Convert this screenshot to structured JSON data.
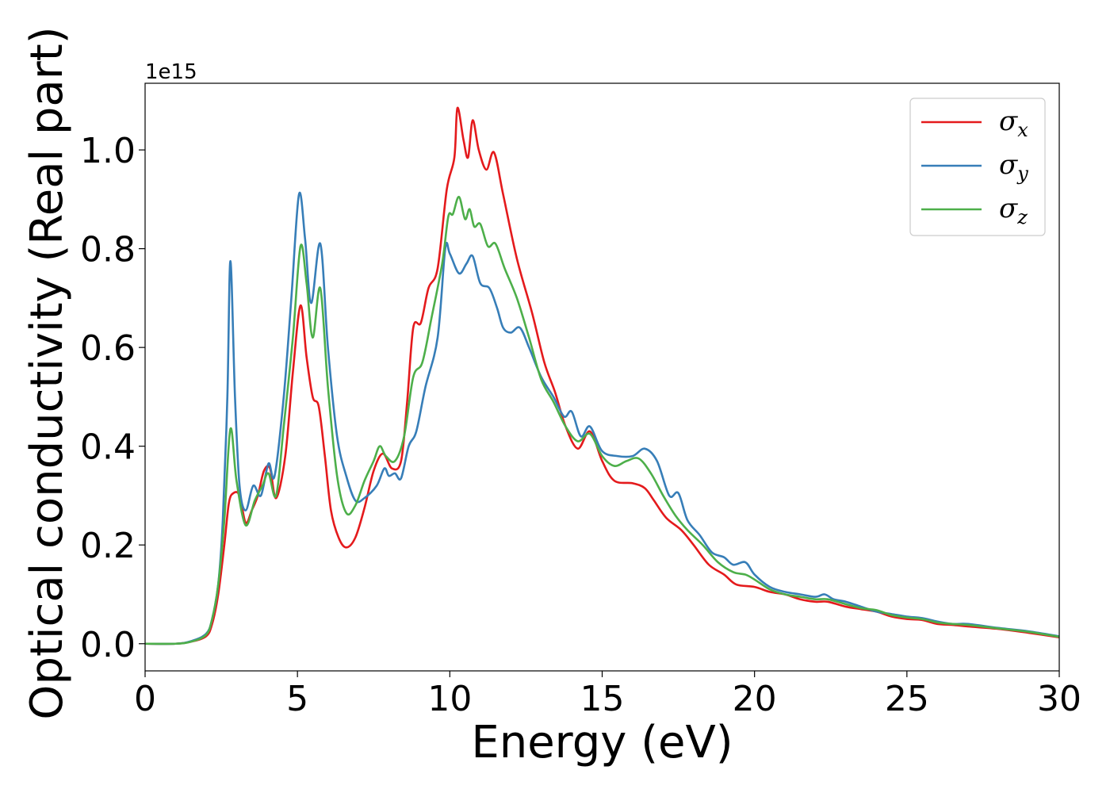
{
  "chart_data": {
    "type": "line",
    "title": "",
    "xlabel": "Energy (eV)",
    "ylabel": "Optical conductivity (Real part)",
    "y_offset_label": "1e15",
    "xlim": [
      0,
      30
    ],
    "ylim": [
      -0.055,
      1.135
    ],
    "x_ticks": [
      0,
      5,
      10,
      15,
      20,
      25,
      30
    ],
    "x_tick_labels": [
      "0",
      "5",
      "10",
      "15",
      "20",
      "25",
      "30"
    ],
    "y_ticks": [
      0.0,
      0.2,
      0.4,
      0.6,
      0.8,
      1.0
    ],
    "y_tick_labels": [
      "0.0",
      "0.2",
      "0.4",
      "0.6",
      "0.8",
      "1.0"
    ],
    "grid": false,
    "legend_position": "top-right",
    "series": [
      {
        "name": "σx",
        "symbol": "σ",
        "subscript": "x",
        "color": "#e41a1c",
        "points": [
          [
            0,
            0
          ],
          [
            1,
            0
          ],
          [
            1.5,
            0.004
          ],
          [
            2,
            0.015
          ],
          [
            2.2,
            0.04
          ],
          [
            2.4,
            0.1
          ],
          [
            2.6,
            0.2
          ],
          [
            2.75,
            0.285
          ],
          [
            2.9,
            0.305
          ],
          [
            3.1,
            0.3
          ],
          [
            3.3,
            0.245
          ],
          [
            3.5,
            0.27
          ],
          [
            3.7,
            0.3
          ],
          [
            3.9,
            0.35
          ],
          [
            4.1,
            0.355
          ],
          [
            4.3,
            0.295
          ],
          [
            4.6,
            0.38
          ],
          [
            4.85,
            0.55
          ],
          [
            5.1,
            0.685
          ],
          [
            5.3,
            0.58
          ],
          [
            5.5,
            0.5
          ],
          [
            5.7,
            0.48
          ],
          [
            5.9,
            0.38
          ],
          [
            6.1,
            0.27
          ],
          [
            6.35,
            0.215
          ],
          [
            6.6,
            0.195
          ],
          [
            6.9,
            0.215
          ],
          [
            7.2,
            0.275
          ],
          [
            7.5,
            0.35
          ],
          [
            7.8,
            0.385
          ],
          [
            8.1,
            0.355
          ],
          [
            8.4,
            0.37
          ],
          [
            8.6,
            0.49
          ],
          [
            8.8,
            0.64
          ],
          [
            9.05,
            0.65
          ],
          [
            9.3,
            0.72
          ],
          [
            9.6,
            0.76
          ],
          [
            9.9,
            0.92
          ],
          [
            10.15,
            0.985
          ],
          [
            10.25,
            1.085
          ],
          [
            10.45,
            1.02
          ],
          [
            10.6,
            0.985
          ],
          [
            10.75,
            1.06
          ],
          [
            10.95,
            1.0
          ],
          [
            11.2,
            0.96
          ],
          [
            11.45,
            0.995
          ],
          [
            11.75,
            0.91
          ],
          [
            12.2,
            0.78
          ],
          [
            12.7,
            0.67
          ],
          [
            13.1,
            0.57
          ],
          [
            13.45,
            0.51
          ],
          [
            13.8,
            0.44
          ],
          [
            14.2,
            0.395
          ],
          [
            14.6,
            0.43
          ],
          [
            15.0,
            0.37
          ],
          [
            15.4,
            0.33
          ],
          [
            16.0,
            0.325
          ],
          [
            16.4,
            0.315
          ],
          [
            16.7,
            0.29
          ],
          [
            17.1,
            0.255
          ],
          [
            17.6,
            0.23
          ],
          [
            18.0,
            0.2
          ],
          [
            18.5,
            0.16
          ],
          [
            19.0,
            0.14
          ],
          [
            19.4,
            0.12
          ],
          [
            20.0,
            0.115
          ],
          [
            20.5,
            0.105
          ],
          [
            21.0,
            0.1
          ],
          [
            21.5,
            0.09
          ],
          [
            22.0,
            0.085
          ],
          [
            22.4,
            0.085
          ],
          [
            23.0,
            0.075
          ],
          [
            23.5,
            0.07
          ],
          [
            24.0,
            0.065
          ],
          [
            24.5,
            0.055
          ],
          [
            25.0,
            0.05
          ],
          [
            25.5,
            0.048
          ],
          [
            26.0,
            0.04
          ],
          [
            26.5,
            0.038
          ],
          [
            27.0,
            0.035
          ],
          [
            28.0,
            0.03
          ],
          [
            29.0,
            0.022
          ],
          [
            30,
            0.013
          ]
        ]
      },
      {
        "name": "σy",
        "symbol": "σ",
        "subscript": "y",
        "color": "#377eb8",
        "points": [
          [
            0,
            0
          ],
          [
            1,
            0
          ],
          [
            1.5,
            0.005
          ],
          [
            2,
            0.02
          ],
          [
            2.2,
            0.05
          ],
          [
            2.4,
            0.12
          ],
          [
            2.55,
            0.25
          ],
          [
            2.7,
            0.5
          ],
          [
            2.8,
            0.775
          ],
          [
            2.95,
            0.5
          ],
          [
            3.1,
            0.32
          ],
          [
            3.3,
            0.27
          ],
          [
            3.55,
            0.32
          ],
          [
            3.8,
            0.3
          ],
          [
            4.05,
            0.365
          ],
          [
            4.25,
            0.34
          ],
          [
            4.55,
            0.5
          ],
          [
            4.8,
            0.7
          ],
          [
            5.05,
            0.91
          ],
          [
            5.25,
            0.82
          ],
          [
            5.45,
            0.69
          ],
          [
            5.75,
            0.81
          ],
          [
            6.0,
            0.6
          ],
          [
            6.3,
            0.42
          ],
          [
            6.6,
            0.34
          ],
          [
            6.9,
            0.29
          ],
          [
            7.2,
            0.295
          ],
          [
            7.6,
            0.32
          ],
          [
            7.85,
            0.355
          ],
          [
            8.0,
            0.34
          ],
          [
            8.2,
            0.345
          ],
          [
            8.4,
            0.335
          ],
          [
            8.65,
            0.4
          ],
          [
            8.9,
            0.43
          ],
          [
            9.2,
            0.52
          ],
          [
            9.6,
            0.62
          ],
          [
            9.85,
            0.8
          ],
          [
            10.0,
            0.79
          ],
          [
            10.3,
            0.75
          ],
          [
            10.55,
            0.77
          ],
          [
            10.75,
            0.785
          ],
          [
            11.0,
            0.73
          ],
          [
            11.3,
            0.72
          ],
          [
            11.55,
            0.68
          ],
          [
            11.75,
            0.64
          ],
          [
            12.0,
            0.63
          ],
          [
            12.3,
            0.64
          ],
          [
            12.6,
            0.6
          ],
          [
            13.0,
            0.54
          ],
          [
            13.4,
            0.5
          ],
          [
            13.75,
            0.46
          ],
          [
            14.0,
            0.47
          ],
          [
            14.3,
            0.42
          ],
          [
            14.6,
            0.44
          ],
          [
            15.0,
            0.39
          ],
          [
            15.5,
            0.38
          ],
          [
            16.0,
            0.38
          ],
          [
            16.4,
            0.395
          ],
          [
            16.8,
            0.37
          ],
          [
            17.2,
            0.3
          ],
          [
            17.5,
            0.305
          ],
          [
            17.8,
            0.25
          ],
          [
            18.2,
            0.22
          ],
          [
            18.6,
            0.185
          ],
          [
            19.0,
            0.175
          ],
          [
            19.3,
            0.16
          ],
          [
            19.7,
            0.165
          ],
          [
            20.0,
            0.14
          ],
          [
            20.5,
            0.115
          ],
          [
            21.0,
            0.105
          ],
          [
            21.5,
            0.1
          ],
          [
            22.0,
            0.095
          ],
          [
            22.3,
            0.1
          ],
          [
            22.6,
            0.09
          ],
          [
            23.0,
            0.085
          ],
          [
            23.5,
            0.075
          ],
          [
            24.0,
            0.065
          ],
          [
            24.5,
            0.06
          ],
          [
            25.0,
            0.055
          ],
          [
            25.5,
            0.052
          ],
          [
            26.0,
            0.045
          ],
          [
            26.5,
            0.04
          ],
          [
            27.0,
            0.04
          ],
          [
            28.0,
            0.032
          ],
          [
            29.0,
            0.025
          ],
          [
            30,
            0.015
          ]
        ]
      },
      {
        "name": "σz",
        "symbol": "σ",
        "subscript": "z",
        "color": "#4daf4a",
        "points": [
          [
            0,
            0
          ],
          [
            1,
            0
          ],
          [
            1.5,
            0.004
          ],
          [
            2,
            0.018
          ],
          [
            2.2,
            0.05
          ],
          [
            2.4,
            0.12
          ],
          [
            2.6,
            0.25
          ],
          [
            2.8,
            0.435
          ],
          [
            3.0,
            0.33
          ],
          [
            3.3,
            0.24
          ],
          [
            3.6,
            0.29
          ],
          [
            3.85,
            0.32
          ],
          [
            4.05,
            0.345
          ],
          [
            4.3,
            0.3
          ],
          [
            4.55,
            0.44
          ],
          [
            4.85,
            0.62
          ],
          [
            5.1,
            0.805
          ],
          [
            5.3,
            0.73
          ],
          [
            5.5,
            0.62
          ],
          [
            5.75,
            0.72
          ],
          [
            6.0,
            0.52
          ],
          [
            6.3,
            0.34
          ],
          [
            6.6,
            0.265
          ],
          [
            6.9,
            0.28
          ],
          [
            7.2,
            0.33
          ],
          [
            7.5,
            0.37
          ],
          [
            7.7,
            0.4
          ],
          [
            7.9,
            0.38
          ],
          [
            8.2,
            0.37
          ],
          [
            8.5,
            0.42
          ],
          [
            8.8,
            0.54
          ],
          [
            9.1,
            0.57
          ],
          [
            9.4,
            0.66
          ],
          [
            9.75,
            0.77
          ],
          [
            9.95,
            0.865
          ],
          [
            10.1,
            0.87
          ],
          [
            10.3,
            0.905
          ],
          [
            10.5,
            0.86
          ],
          [
            10.65,
            0.88
          ],
          [
            10.8,
            0.845
          ],
          [
            11.0,
            0.85
          ],
          [
            11.25,
            0.805
          ],
          [
            11.5,
            0.81
          ],
          [
            11.8,
            0.76
          ],
          [
            12.2,
            0.7
          ],
          [
            12.6,
            0.62
          ],
          [
            13.0,
            0.535
          ],
          [
            13.4,
            0.49
          ],
          [
            13.8,
            0.44
          ],
          [
            14.2,
            0.41
          ],
          [
            14.6,
            0.425
          ],
          [
            15.0,
            0.38
          ],
          [
            15.4,
            0.36
          ],
          [
            15.8,
            0.37
          ],
          [
            16.2,
            0.375
          ],
          [
            16.6,
            0.345
          ],
          [
            17.0,
            0.3
          ],
          [
            17.4,
            0.26
          ],
          [
            17.8,
            0.23
          ],
          [
            18.3,
            0.2
          ],
          [
            18.8,
            0.165
          ],
          [
            19.3,
            0.145
          ],
          [
            19.7,
            0.14
          ],
          [
            20.0,
            0.13
          ],
          [
            20.5,
            0.11
          ],
          [
            21.0,
            0.1
          ],
          [
            21.5,
            0.095
          ],
          [
            22.0,
            0.09
          ],
          [
            22.4,
            0.09
          ],
          [
            23.0,
            0.08
          ],
          [
            23.5,
            0.072
          ],
          [
            24.0,
            0.068
          ],
          [
            24.5,
            0.058
          ],
          [
            25.0,
            0.053
          ],
          [
            25.5,
            0.05
          ],
          [
            26.0,
            0.043
          ],
          [
            26.5,
            0.04
          ],
          [
            27.0,
            0.038
          ],
          [
            28.0,
            0.031
          ],
          [
            29.0,
            0.024
          ],
          [
            30,
            0.014
          ]
        ]
      }
    ]
  }
}
